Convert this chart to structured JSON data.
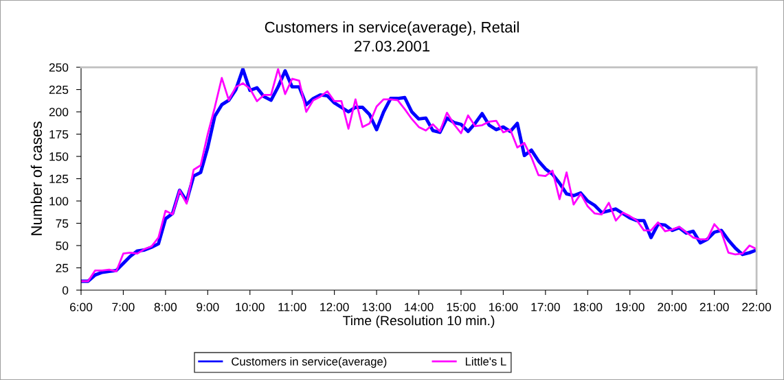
{
  "chart_data": {
    "type": "line",
    "title": "Customers in service(average), Retail",
    "subtitle": "27.03.2001",
    "xlabel": "Time (Resolution 10 min.)",
    "ylabel": "Number of cases",
    "x": [
      6,
      6.1667,
      6.3333,
      6.5,
      6.6667,
      6.8333,
      7,
      7.1667,
      7.3333,
      7.5,
      7.6667,
      7.8333,
      8,
      8.1667,
      8.3333,
      8.5,
      8.6667,
      8.8333,
      9,
      9.1667,
      9.3333,
      9.5,
      9.6667,
      9.8333,
      10,
      10.1667,
      10.3333,
      10.5,
      10.6667,
      10.8333,
      11,
      11.1667,
      11.3333,
      11.5,
      11.6667,
      11.8333,
      12,
      12.1667,
      12.3333,
      12.5,
      12.6667,
      12.8333,
      13,
      13.1667,
      13.3333,
      13.5,
      13.6667,
      13.8333,
      14,
      14.1667,
      14.3333,
      14.5,
      14.6667,
      14.8333,
      15,
      15.1667,
      15.3333,
      15.5,
      15.6667,
      15.8333,
      16,
      16.1667,
      16.3333,
      16.5,
      16.6667,
      16.8333,
      17,
      17.1667,
      17.3333,
      17.5,
      17.6667,
      17.8333,
      18,
      18.1667,
      18.3333,
      18.5,
      18.6667,
      18.8333,
      19,
      19.1667,
      19.3333,
      19.5,
      19.6667,
      19.8333,
      20,
      20.1667,
      20.3333,
      20.5,
      20.6667,
      20.8333,
      21,
      21.1667,
      21.3333,
      21.5,
      21.6667,
      21.8333,
      22
    ],
    "series": [
      {
        "name": "Customers in service(average)",
        "color": "#0000ff",
        "values": [
          10,
          10,
          17,
          20,
          21,
          22,
          30,
          38,
          44,
          45,
          48,
          52,
          80,
          86,
          112,
          100,
          128,
          132,
          160,
          195,
          208,
          213,
          225,
          248,
          224,
          227,
          217,
          213,
          228,
          246,
          228,
          228,
          208,
          215,
          219,
          218,
          210,
          205,
          200,
          205,
          205,
          197,
          180,
          200,
          215,
          215,
          216,
          200,
          192,
          193,
          179,
          177,
          193,
          188,
          186,
          178,
          187,
          198,
          185,
          180,
          183,
          178,
          187,
          151,
          157,
          145,
          136,
          130,
          120,
          108,
          106,
          109,
          100,
          95,
          87,
          89,
          91,
          86,
          81,
          78,
          78,
          59,
          74,
          73,
          67,
          70,
          64,
          66,
          53,
          57,
          65,
          67,
          56,
          47,
          40,
          42,
          45
        ]
      },
      {
        "name": "Little's L",
        "color": "#ff00ff",
        "values": [
          10,
          10,
          22,
          22,
          23,
          21,
          41,
          42,
          41,
          46,
          49,
          59,
          89,
          85,
          112,
          97,
          135,
          140,
          175,
          205,
          238,
          213,
          228,
          232,
          226,
          212,
          219,
          219,
          248,
          220,
          237,
          235,
          200,
          213,
          217,
          223,
          212,
          212,
          181,
          214,
          183,
          187,
          206,
          214,
          214,
          213,
          203,
          192,
          183,
          179,
          186,
          178,
          199,
          186,
          176,
          196,
          184,
          185,
          189,
          190,
          177,
          180,
          160,
          165,
          149,
          129,
          128,
          134,
          102,
          132,
          96,
          108,
          94,
          86,
          85,
          98,
          78,
          87,
          83,
          78,
          67,
          67,
          76,
          66,
          68,
          71,
          65,
          59,
          57,
          57,
          74,
          65,
          42,
          40,
          41,
          50,
          46
        ]
      }
    ],
    "xlim": [
      6,
      22
    ],
    "xticks": [
      {
        "value": 6,
        "label": "6:00"
      },
      {
        "value": 7,
        "label": "7:00"
      },
      {
        "value": 8,
        "label": "8:00"
      },
      {
        "value": 9,
        "label": "9:00"
      },
      {
        "value": 10,
        "label": "10:00"
      },
      {
        "value": 11,
        "label": "11:00"
      },
      {
        "value": 12,
        "label": "12:00"
      },
      {
        "value": 13,
        "label": "13:00"
      },
      {
        "value": 14,
        "label": "14:00"
      },
      {
        "value": 15,
        "label": "15:00"
      },
      {
        "value": 16,
        "label": "16:00"
      },
      {
        "value": 17,
        "label": "17:00"
      },
      {
        "value": 18,
        "label": "18:00"
      },
      {
        "value": 19,
        "label": "19:00"
      },
      {
        "value": 20,
        "label": "20:00"
      },
      {
        "value": 21,
        "label": "21:00"
      },
      {
        "value": 22,
        "label": "22:00"
      }
    ],
    "ylim": [
      0,
      250
    ],
    "yticks": [
      0,
      25,
      50,
      75,
      100,
      125,
      150,
      175,
      200,
      225,
      250
    ],
    "grid": false,
    "legend": "bottom",
    "marker": "none",
    "line_style": "solid"
  }
}
